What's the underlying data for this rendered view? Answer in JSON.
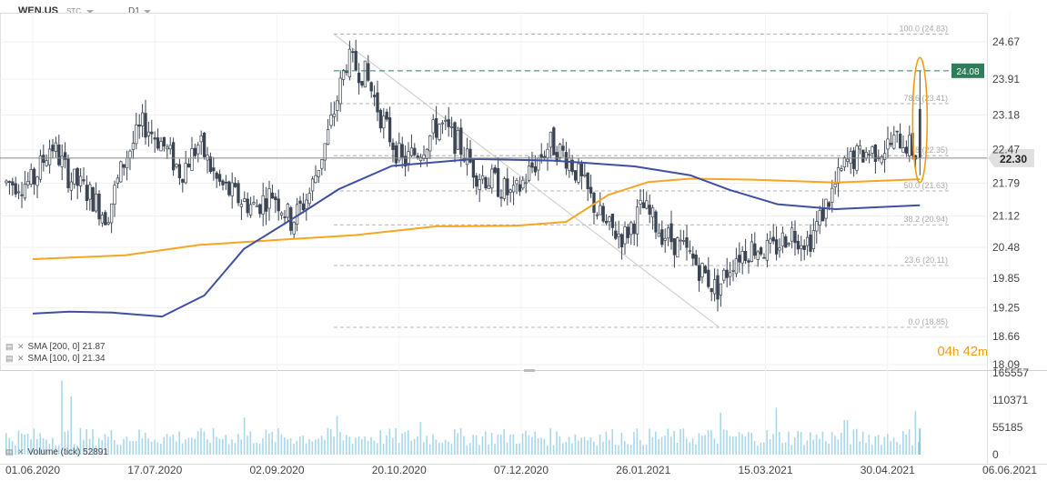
{
  "header": {
    "symbol": "WEN.US",
    "symbol_class": "STC",
    "timeframe": "D1"
  },
  "indicators": {
    "sma200_label": "SMA [200,  0] 21.87",
    "sma100_label": "SMA [100,  0] 21.34",
    "volume_label": "Volume  (tick)  52891"
  },
  "countdown": {
    "hours": "04",
    "h_unit": "h",
    "minutes": "42",
    "m_unit": "m"
  },
  "colors": {
    "candle": "#3a4452",
    "sma200": "#f5a623",
    "sma100": "#3f4fa3",
    "volume": "#a8d8ea",
    "fib": "#9e9e9e",
    "hline": "#2e7d5b",
    "price_tag": "#2e7d5b",
    "last_tag": "#e0e0e0",
    "highlight": "#f39c12"
  },
  "chart_data": [
    {
      "type": "candlestick",
      "symbol": "WEN.US",
      "timeframe": "D1",
      "x_tick_labels": [
        "01.06.2020",
        "17.07.2020",
        "02.09.2020",
        "20.10.2020",
        "07.12.2020",
        "26.01.2021",
        "15.03.2021",
        "30.04.2021",
        "06.06.2021"
      ],
      "y_tick_labels": [
        "24.67",
        "23.91",
        "23.18",
        "22.47",
        "21.79",
        "21.12",
        "20.48",
        "19.85",
        "19.25",
        "18.66",
        "18.09"
      ],
      "ylim": [
        18.09,
        25.2
      ],
      "last_price": 22.3,
      "horizontal_line": {
        "price": 24.08,
        "label": "24.08"
      },
      "fibonacci_levels": [
        {
          "ratio": "100.0",
          "price": 24.83,
          "label": "100.0 (24.83)"
        },
        {
          "ratio": "78.6",
          "price": 23.41,
          "label": "78.6 (23.41)"
        },
        {
          "ratio": "61.8",
          "price": 22.35,
          "label": "61.8 (22.35)"
        },
        {
          "ratio": "50.0",
          "price": 21.63,
          "label": "50.0 (21.63)"
        },
        {
          "ratio": "38.2",
          "price": 20.94,
          "label": "38.2 (20.94)"
        },
        {
          "ratio": "23.6",
          "price": 20.11,
          "label": "23.6 (20.11)"
        },
        {
          "ratio": "0.0",
          "price": 18.85,
          "label": "0.0 (18.85)"
        }
      ],
      "trendline": {
        "from": {
          "date": "2020-09-23",
          "price": 24.83
        },
        "to": {
          "date": "2021-02-16",
          "price": 18.85
        }
      },
      "price_path": [
        {
          "date": "2020-06-01",
          "price": 21.8
        },
        {
          "date": "2020-06-08",
          "price": 22.6
        },
        {
          "date": "2020-06-15",
          "price": 21.9
        },
        {
          "date": "2020-06-22",
          "price": 21.6
        },
        {
          "date": "2020-06-29",
          "price": 21.1
        },
        {
          "date": "2020-07-06",
          "price": 22.3
        },
        {
          "date": "2020-07-13",
          "price": 23.0
        },
        {
          "date": "2020-07-20",
          "price": 22.6
        },
        {
          "date": "2020-07-27",
          "price": 22.0
        },
        {
          "date": "2020-08-03",
          "price": 22.6
        },
        {
          "date": "2020-08-10",
          "price": 21.8
        },
        {
          "date": "2020-08-17",
          "price": 21.5
        },
        {
          "date": "2020-08-24",
          "price": 21.3
        },
        {
          "date": "2020-08-31",
          "price": 21.6
        },
        {
          "date": "2020-09-07",
          "price": 21.0
        },
        {
          "date": "2020-09-14",
          "price": 21.6
        },
        {
          "date": "2020-09-21",
          "price": 22.8
        },
        {
          "date": "2020-09-28",
          "price": 24.3
        },
        {
          "date": "2020-10-05",
          "price": 24.0
        },
        {
          "date": "2020-10-12",
          "price": 23.0
        },
        {
          "date": "2020-10-19",
          "price": 22.2
        },
        {
          "date": "2020-10-26",
          "price": 22.5
        },
        {
          "date": "2020-11-02",
          "price": 23.0
        },
        {
          "date": "2020-11-09",
          "price": 22.6
        },
        {
          "date": "2020-11-16",
          "price": 22.0
        },
        {
          "date": "2020-11-23",
          "price": 21.8
        },
        {
          "date": "2020-11-30",
          "price": 21.5
        },
        {
          "date": "2020-12-07",
          "price": 22.1
        },
        {
          "date": "2020-12-14",
          "price": 22.6
        },
        {
          "date": "2020-12-21",
          "price": 22.3
        },
        {
          "date": "2020-12-28",
          "price": 21.6
        },
        {
          "date": "2021-01-04",
          "price": 20.9
        },
        {
          "date": "2021-01-11",
          "price": 20.7
        },
        {
          "date": "2021-01-18",
          "price": 21.3
        },
        {
          "date": "2021-01-25",
          "price": 20.8
        },
        {
          "date": "2021-02-01",
          "price": 20.5
        },
        {
          "date": "2021-02-08",
          "price": 20.1
        },
        {
          "date": "2021-02-15",
          "price": 19.6
        },
        {
          "date": "2021-02-22",
          "price": 20.3
        },
        {
          "date": "2021-03-01",
          "price": 20.5
        },
        {
          "date": "2021-03-08",
          "price": 20.4
        },
        {
          "date": "2021-03-15",
          "price": 20.8
        },
        {
          "date": "2021-03-22",
          "price": 20.6
        },
        {
          "date": "2021-03-29",
          "price": 21.4
        },
        {
          "date": "2021-04-05",
          "price": 22.2
        },
        {
          "date": "2021-04-12",
          "price": 22.4
        },
        {
          "date": "2021-04-19",
          "price": 22.5
        },
        {
          "date": "2021-04-26",
          "price": 22.7
        },
        {
          "date": "2021-05-03",
          "price": 22.3
        }
      ],
      "series": [
        {
          "name": "SMA [200,  0] 21.87",
          "color": "#f5a623",
          "points": [
            {
              "date": "2020-06-01",
              "price": 20.24
            },
            {
              "date": "2020-07-06",
              "price": 20.32
            },
            {
              "date": "2020-08-03",
              "price": 20.53
            },
            {
              "date": "2020-09-01",
              "price": 20.63
            },
            {
              "date": "2020-10-01",
              "price": 20.73
            },
            {
              "date": "2020-11-01",
              "price": 20.91
            },
            {
              "date": "2020-12-01",
              "price": 20.92
            },
            {
              "date": "2020-12-20",
              "price": 21.0
            },
            {
              "date": "2021-01-05",
              "price": 21.55
            },
            {
              "date": "2021-01-20",
              "price": 21.81
            },
            {
              "date": "2021-02-05",
              "price": 21.88
            },
            {
              "date": "2021-03-01",
              "price": 21.86
            },
            {
              "date": "2021-04-01",
              "price": 21.8
            },
            {
              "date": "2021-05-03",
              "price": 21.87
            }
          ]
        },
        {
          "name": "SMA [100,  0] 21.34",
          "color": "#3f4fa3",
          "points": [
            {
              "date": "2020-06-01",
              "price": 19.13
            },
            {
              "date": "2020-06-15",
              "price": 19.17
            },
            {
              "date": "2020-07-01",
              "price": 19.15
            },
            {
              "date": "2020-07-20",
              "price": 19.07
            },
            {
              "date": "2020-08-05",
              "price": 19.5
            },
            {
              "date": "2020-08-20",
              "price": 20.45
            },
            {
              "date": "2020-09-10",
              "price": 21.15
            },
            {
              "date": "2020-09-25",
              "price": 21.67
            },
            {
              "date": "2020-10-15",
              "price": 22.14
            },
            {
              "date": "2020-11-15",
              "price": 22.28
            },
            {
              "date": "2020-12-15",
              "price": 22.25
            },
            {
              "date": "2021-01-15",
              "price": 22.13
            },
            {
              "date": "2021-02-05",
              "price": 21.95
            },
            {
              "date": "2021-02-20",
              "price": 21.65
            },
            {
              "date": "2021-03-10",
              "price": 21.36
            },
            {
              "date": "2021-04-01",
              "price": 21.26
            },
            {
              "date": "2021-05-03",
              "price": 21.34
            }
          ]
        }
      ]
    },
    {
      "type": "bar",
      "title": "Volume  (tick)  52891",
      "y_tick_labels": [
        "165557",
        "110371",
        "55185",
        "0"
      ],
      "ylim": [
        0,
        165557
      ],
      "last_value": 52891,
      "base_level": 40000,
      "spike_points": [
        {
          "date": "2020-06-12",
          "value": 150000
        },
        {
          "date": "2020-06-16",
          "value": 118000
        },
        {
          "date": "2020-08-20",
          "value": 75000
        },
        {
          "date": "2020-09-24",
          "value": 78000
        },
        {
          "date": "2020-10-26",
          "value": 66000
        },
        {
          "date": "2021-02-17",
          "value": 85000
        },
        {
          "date": "2021-03-10",
          "value": 95000
        },
        {
          "date": "2021-04-05",
          "value": 70000
        },
        {
          "date": "2021-05-01",
          "value": 88000
        }
      ]
    }
  ]
}
